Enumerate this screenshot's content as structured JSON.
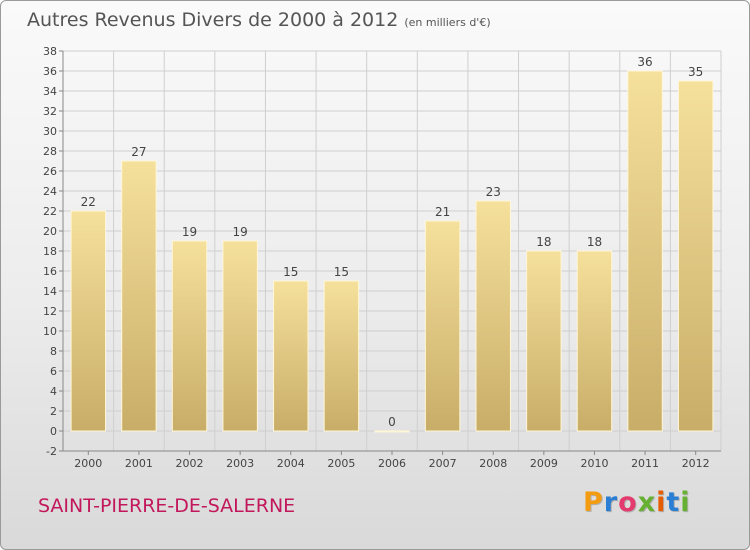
{
  "title": "Autres Revenus Divers de 2000 à 2012",
  "unit": "(en milliers d'€)",
  "town": "SAINT-PIERRE-DE-SALERNE",
  "logo": "Proxiti",
  "colors": {
    "bar_light": "#f5e09c",
    "bar_dark": "#c8ad68",
    "town": "#c2185b",
    "grid": "#cfcfcf"
  },
  "chart_data": {
    "type": "bar",
    "title": "Autres Revenus Divers de 2000 à 2012",
    "xlabel": "",
    "ylabel": "",
    "categories": [
      "2000",
      "2001",
      "2002",
      "2003",
      "2004",
      "2005",
      "2006",
      "2007",
      "2008",
      "2009",
      "2010",
      "2011",
      "2012"
    ],
    "values": [
      22,
      27,
      19,
      19,
      15,
      15,
      0,
      21,
      23,
      18,
      18,
      36,
      35
    ],
    "data_labels": [
      "22",
      "27",
      "19",
      "19",
      "15",
      "15",
      "0",
      "21",
      "23",
      "18",
      "18",
      "36",
      "35"
    ],
    "ylim": [
      -2,
      38
    ],
    "yticks": [
      -2,
      0,
      2,
      4,
      6,
      8,
      10,
      12,
      14,
      16,
      18,
      20,
      22,
      24,
      26,
      28,
      30,
      32,
      34,
      36,
      38
    ],
    "grid": true
  }
}
